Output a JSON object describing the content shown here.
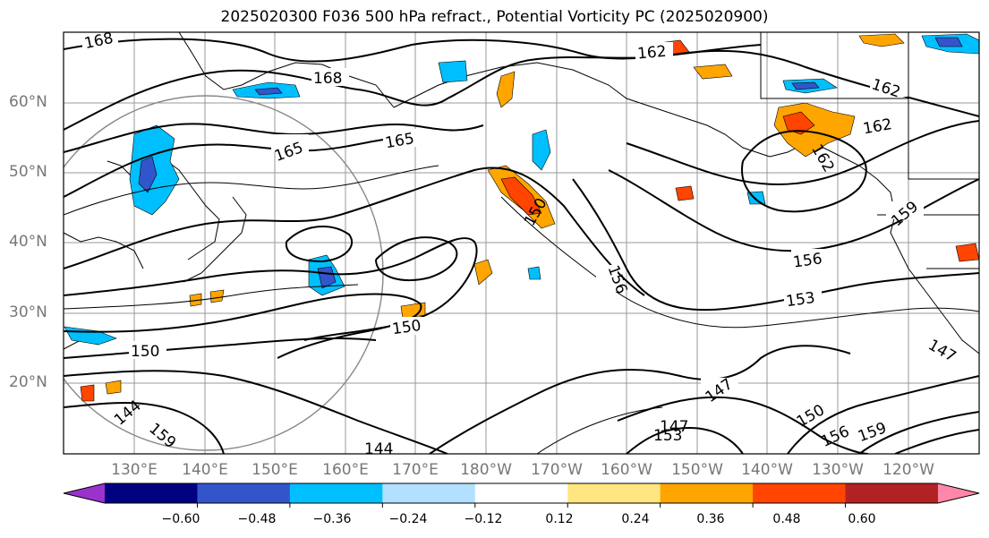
{
  "title": "2025020300 F036 500 hPa refract., Potential Vorticity PC (2025020900)",
  "lat_ticks": [
    "60°N",
    "50°N",
    "40°N",
    "30°N",
    "20°N"
  ],
  "lon_ticks": [
    "130°E",
    "140°E",
    "150°E",
    "160°E",
    "170°E",
    "180°W",
    "170°W",
    "160°W",
    "150°W",
    "140°W",
    "130°W",
    "120°W"
  ],
  "contour_labels": [
    "168",
    "168",
    "165",
    "165",
    "162",
    "162",
    "162",
    "159",
    "156",
    "156",
    "153",
    "150",
    "150",
    "150",
    "147",
    "147",
    "144",
    "144",
    "156",
    "153",
    "159",
    "150",
    "147",
    "159",
    "162"
  ],
  "colorbar": {
    "tick_labels": [
      "−0.60",
      "−0.48",
      "−0.36",
      "−0.24",
      "−0.12",
      "0.12",
      "0.24",
      "0.36",
      "0.48",
      "0.60"
    ],
    "colors": [
      "#9933cc",
      "#000080",
      "#3355cc",
      "#00bfff",
      "#b3e0ff",
      "#ffffff",
      "#ffe680",
      "#ffa500",
      "#ff4500",
      "#b22222",
      "#ff88aa"
    ]
  }
}
